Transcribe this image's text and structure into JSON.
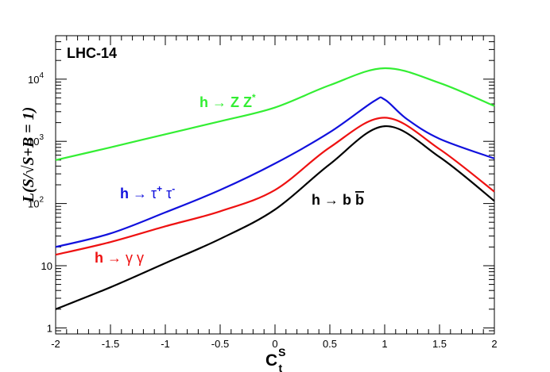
{
  "chart_data": {
    "type": "line",
    "title": "LHC-14",
    "xlabel": "C",
    "xlabel_sup": "S",
    "xlabel_sub": "t",
    "ylabel": "L(S/√S+B = 1)",
    "xlim": [
      -2,
      2
    ],
    "ylim": [
      0.8,
      50000
    ],
    "yscale": "log",
    "x_tick_labels": [
      "-2",
      "-1.5",
      "-1",
      "-0.5",
      "0",
      "0.5",
      "1",
      "1.5",
      "2"
    ],
    "y_tick_labels": [
      {
        "value": 1,
        "label": "1"
      },
      {
        "value": 10,
        "label": "10"
      },
      {
        "value": 100,
        "label": "10",
        "sup": "2"
      },
      {
        "value": 1000,
        "label": "10",
        "sup": "3"
      },
      {
        "value": 10000,
        "label": "10",
        "sup": "4"
      }
    ],
    "grid": false,
    "series": [
      {
        "name": "h → Z Z*",
        "color": "#33ee33",
        "x": [
          -2,
          -1.5,
          -1,
          -0.5,
          0,
          0.5,
          1,
          1.5,
          2
        ],
        "values": [
          500,
          800,
          1300,
          2100,
          3500,
          8000,
          15000,
          8700,
          3700
        ]
      },
      {
        "name": "h → τ⁺ τ⁻",
        "color": "#1111dd",
        "x": [
          -2,
          -1.5,
          -1,
          -0.5,
          0,
          0.5,
          0.9,
          1,
          1.2,
          1.5,
          2
        ],
        "values": [
          20,
          33,
          72,
          165,
          440,
          1400,
          4400,
          4700,
          2300,
          1100,
          530
        ]
      },
      {
        "name": "h → γ γ",
        "color": "#ee1111",
        "x": [
          -2,
          -1.5,
          -1,
          -0.5,
          0,
          0.5,
          1,
          1.5,
          2
        ],
        "values": [
          15,
          24,
          43,
          75,
          165,
          800,
          2400,
          750,
          155
        ]
      },
      {
        "name": "h → b b̅",
        "color": "#000000",
        "x": [
          -2,
          -1.5,
          -1,
          -0.5,
          0,
          0.5,
          1,
          1.5,
          2
        ],
        "values": [
          2,
          4.5,
          11,
          27,
          80,
          430,
          1750,
          560,
          110
        ]
      }
    ],
    "annotations": {
      "zz": {
        "pre": "h ",
        "arrow": "→",
        "post": " Z Z",
        "sup": "*"
      },
      "tau": {
        "pre": "h ",
        "arrow": "→",
        "t1": " τ",
        "sup1": "+",
        "t2": " τ",
        "sup2": "-"
      },
      "gg": {
        "pre": "h ",
        "arrow": "→",
        "post": " γ  γ"
      },
      "bb": {
        "pre": "h ",
        "arrow": "→",
        "post": " b ",
        "bbar": "b"
      }
    }
  }
}
